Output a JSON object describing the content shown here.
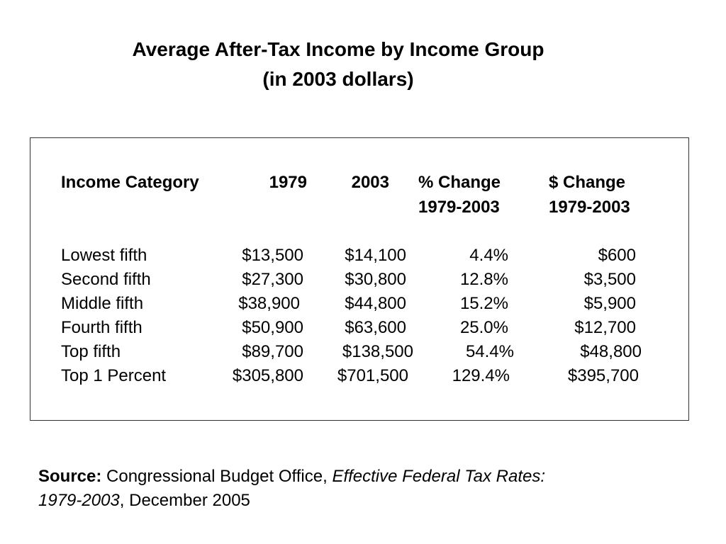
{
  "title": {
    "line1": "Average After-Tax Income by Income Group",
    "line2": "(in 2003 dollars)"
  },
  "table": {
    "headers": {
      "category": "Income Category",
      "y1979": "1979",
      "y2003": "2003",
      "pct_change": "% Change",
      "pct_change_range": "1979-2003",
      "dollar_change": "$ Change",
      "dollar_change_range": "1979-2003"
    },
    "rows": [
      {
        "category": "Lowest fifth",
        "y1979": "$13,500",
        "y2003": "$14,100",
        "pct_change": "4.4%",
        "dollar_change": "$600"
      },
      {
        "category": "Second fifth",
        "y1979": "$27,300",
        "y2003": "$30,800",
        "pct_change": "12.8%",
        "dollar_change": "$3,500"
      },
      {
        "category": "Middle fifth",
        "y1979": "$38,900",
        "y2003": "$44,800",
        "pct_change": "15.2%",
        "dollar_change": "$5,900"
      },
      {
        "category": "Fourth fifth",
        "y1979": "$50,900",
        "y2003": "$63,600",
        "pct_change": "25.0%",
        "dollar_change": "$12,700"
      },
      {
        "category": "Top fifth",
        "y1979": "$89,700",
        "y2003": "$138,500",
        "pct_change": "54.4%",
        "dollar_change": "$48,800"
      },
      {
        "category": "Top 1 Percent",
        "y1979": "$305,800",
        "y2003": "$701,500",
        "pct_change": "129.4%",
        "dollar_change": "$395,700"
      }
    ]
  },
  "source": {
    "label": "Source:",
    "publisher": " Congressional Budget Office, ",
    "publication_part1": "Effective Federal Tax Rates:",
    "publication_part2": "1979-2003",
    "date": ", December 2005"
  }
}
